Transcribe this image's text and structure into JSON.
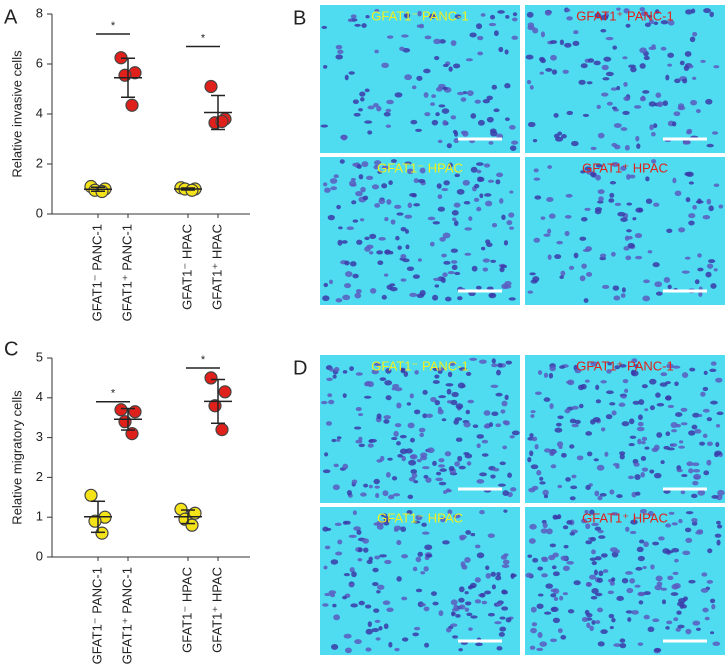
{
  "chart_data": [
    {
      "type": "dotplot",
      "panel": "A",
      "ylabel": "Relative invasive cells",
      "categories": [
        "GFAT1⁻ PANC-1",
        "GFAT1⁺ PANC-1",
        "GFAT1⁻ HPAC",
        "GFAT1⁺ HPAC"
      ],
      "colors": [
        "#f5e31a",
        "#e0201b",
        "#f5e31a",
        "#e0201b"
      ],
      "values": [
        [
          1.1,
          1.0,
          0.95,
          0.9
        ],
        [
          6.25,
          5.65,
          5.55,
          4.35
        ],
        [
          1.05,
          1.0,
          1.0,
          0.95
        ],
        [
          5.1,
          3.8,
          3.65,
          3.7
        ]
      ],
      "means": [
        0.99,
        5.45,
        1.0,
        4.06
      ],
      "sds": [
        0.08,
        0.78,
        0.04,
        0.68
      ],
      "significance": [
        {
          "from": 0,
          "to": 1,
          "y": 7.2,
          "label": "*"
        },
        {
          "from": 2,
          "to": 3,
          "y": 6.7,
          "label": "*"
        }
      ],
      "ylim": [
        0,
        8
      ],
      "yticks": [
        0,
        2,
        4,
        6,
        8
      ]
    },
    {
      "type": "dotplot",
      "panel": "C",
      "ylabel": "Relative migratory cells",
      "categories": [
        "GFAT1⁻ PANC-1",
        "GFAT1⁺ PANC-1",
        "GFAT1⁻ HPAC",
        "GFAT1⁺ HPAC"
      ],
      "colors": [
        "#f5e31a",
        "#e0201b",
        "#f5e31a",
        "#e0201b"
      ],
      "values": [
        [
          1.55,
          1.0,
          0.9,
          0.6
        ],
        [
          3.7,
          3.65,
          3.4,
          3.1
        ],
        [
          1.2,
          1.1,
          0.95,
          0.8
        ],
        [
          4.5,
          4.15,
          3.8,
          3.2
        ]
      ],
      "means": [
        1.01,
        3.46,
        1.01,
        3.91
      ],
      "sds": [
        0.39,
        0.27,
        0.17,
        0.55
      ],
      "significance": [
        {
          "from": 0,
          "to": 1,
          "y": 3.9,
          "label": "*"
        },
        {
          "from": 2,
          "to": 3,
          "y": 4.75,
          "label": "*"
        }
      ],
      "ylim": [
        0,
        5
      ],
      "yticks": [
        0,
        1,
        2,
        3,
        4,
        5
      ]
    }
  ],
  "image_panels": [
    {
      "panel": "B",
      "images": [
        {
          "label": "GFAT1⁻ PANC-1",
          "color": "#f0f020"
        },
        {
          "label": "GFAT1⁺ PANC-1",
          "color": "#e0201b"
        },
        {
          "label": "GFAT1⁻ HPAC",
          "color": "#f0f020"
        },
        {
          "label": "GFAT1⁺ HPAC",
          "color": "#e0201b"
        }
      ]
    },
    {
      "panel": "D",
      "images": [
        {
          "label": "GFAT1⁻ PANC-1",
          "color": "#f0f020"
        },
        {
          "label": "GFAT1⁺ PANC-1",
          "color": "#e0201b"
        },
        {
          "label": "GFAT1⁻ HPAC",
          "color": "#f0f020"
        },
        {
          "label": "GFAT1⁺ HPAC",
          "color": "#e0201b"
        }
      ]
    }
  ]
}
